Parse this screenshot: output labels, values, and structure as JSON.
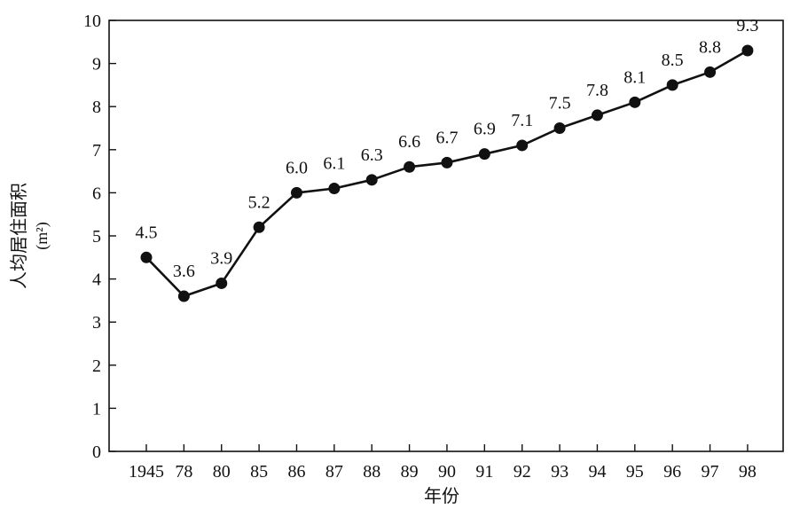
{
  "chart_data": {
    "type": "line",
    "categories": [
      "1945",
      "78",
      "80",
      "85",
      "86",
      "87",
      "88",
      "89",
      "90",
      "91",
      "92",
      "93",
      "94",
      "95",
      "96",
      "97",
      "98"
    ],
    "values": [
      4.5,
      3.6,
      3.9,
      5.2,
      6.0,
      6.1,
      6.3,
      6.6,
      6.7,
      6.9,
      7.1,
      7.5,
      7.8,
      8.1,
      8.5,
      8.8,
      9.3
    ],
    "data_labels": [
      "4.5",
      "3.6",
      "3.9",
      "5.2",
      "6.0",
      "6.1",
      "6.3",
      "6.6",
      "6.7",
      "6.9",
      "7.1",
      "7.5",
      "7.8",
      "8.1",
      "8.5",
      "8.8",
      "9.3"
    ],
    "xlabel": "年份",
    "ylabel": "人均居住面积",
    "ylabel_unit": "(m²)",
    "ylim": [
      0,
      10
    ],
    "yticks": [
      0,
      1,
      2,
      3,
      4,
      5,
      6,
      7,
      8,
      9,
      10
    ],
    "grid": false,
    "line_color": "#111111",
    "marker_color": "#111111"
  }
}
